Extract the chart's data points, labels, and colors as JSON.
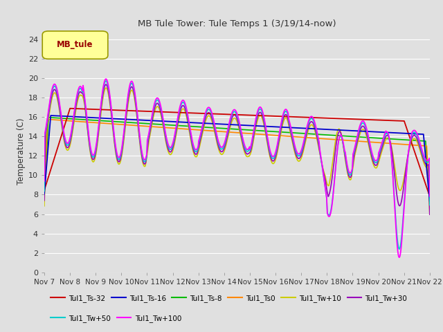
{
  "title": "MB Tule Tower: Tule Temps 1 (3/19/14-now)",
  "ylabel": "Temperature (C)",
  "ylim": [
    0,
    25
  ],
  "yticks": [
    0,
    2,
    4,
    6,
    8,
    10,
    12,
    14,
    16,
    18,
    20,
    22,
    24
  ],
  "bg_color": "#e0e0e0",
  "grid_color": "#ffffff",
  "series_colors": {
    "Tul1_Ts-32": "#cc0000",
    "Tul1_Ts-16": "#0000cc",
    "Tul1_Ts-8": "#00bb00",
    "Tul1_Ts0": "#ff8800",
    "Tul1_Tw+10": "#cccc00",
    "Tul1_Tw+30": "#9900bb",
    "Tul1_Tw+50": "#00cccc",
    "Tul1_Tw+100": "#ff00ff"
  },
  "xtick_labels": [
    "Nov 7",
    "Nov 8",
    "Nov 9",
    "Nov 10",
    "Nov 11",
    "Nov 12",
    "Nov 13",
    "Nov 14",
    "Nov 15",
    "Nov 16",
    "Nov 17",
    "Nov 18",
    "Nov 19",
    "Nov 20",
    "Nov 21",
    "Nov 22"
  ],
  "legend_box_face": "#ffff99",
  "legend_box_edge": "#999900",
  "legend_label": "MB_tule",
  "legend_label_color": "#990000"
}
